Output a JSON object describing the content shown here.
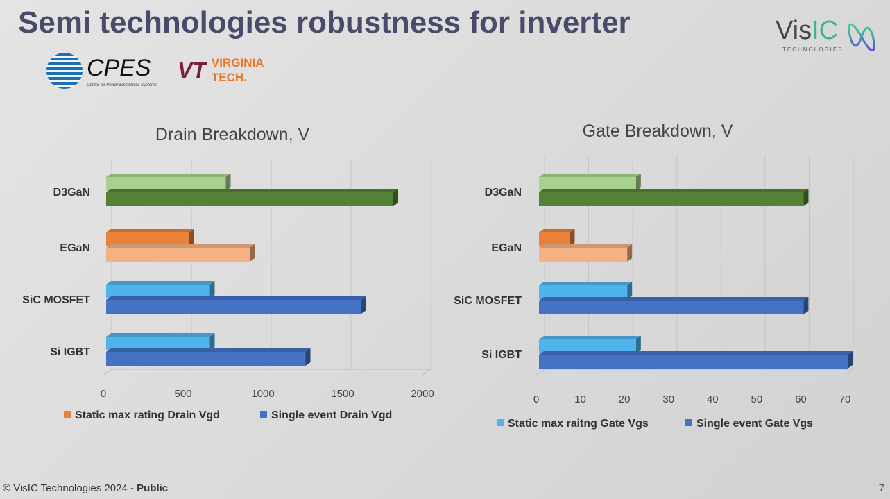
{
  "title": "Semi technologies robustness for inverter",
  "logos": {
    "cpes": "CPES",
    "cpes_sub": "Center for Power Electronics Systems",
    "vt_mark": "VT",
    "vt_name": "VIRGINIA TECH.",
    "visic_a": "Vis",
    "visic_b": "IC",
    "visic_sub": "TECHNOLOGIES"
  },
  "footer": {
    "copyright": "© VisIC Technologies 2024 - ",
    "public": "Public",
    "page": "7"
  },
  "chart_data": [
    {
      "type": "bar",
      "title": "Drain Breakdown, V",
      "categories": [
        "D3GaN",
        "EGaN",
        "SiC MOSFET",
        "Si IGBT"
      ],
      "xlim": [
        0,
        2000
      ],
      "ticks": [
        "0",
        "500",
        "1000",
        "1500",
        "2000"
      ],
      "tick_values": [
        0,
        500,
        1000,
        1500,
        2000
      ],
      "series": [
        {
          "name": "Static max rating Drain Vgd",
          "values": [
            750,
            520,
            650,
            650
          ],
          "colors": [
            "#a9d18e",
            "#e8823a",
            "#4fb3ec",
            "#4fb3ec"
          ],
          "legend_color": "#e8823a"
        },
        {
          "name": "Single event Drain Vgd",
          "values": [
            1800,
            900,
            1600,
            1250
          ],
          "colors": [
            "#548235",
            "#f4b183",
            "#4472c4",
            "#4472c4"
          ],
          "legend_color": "#4472c4"
        }
      ],
      "legend": "bottom"
    },
    {
      "type": "bar",
      "title": "Gate Breakdown, V",
      "categories": [
        "D3GaN",
        "EGaN",
        "SiC MOSFET",
        "Si IGBT"
      ],
      "xlim": [
        0,
        70
      ],
      "ticks": [
        "0",
        "10",
        "20",
        "30",
        "40",
        "50",
        "60",
        "70"
      ],
      "tick_values": [
        0,
        10,
        20,
        30,
        40,
        50,
        60,
        70
      ],
      "series": [
        {
          "name": "Static max raitng Gate Vgs",
          "values": [
            22,
            7,
            20,
            22
          ],
          "colors": [
            "#a9d18e",
            "#e8823a",
            "#4fb3ec",
            "#4fb3ec"
          ],
          "legend_color": "#4fb3ec"
        },
        {
          "name": "Single event Gate Vgs",
          "values": [
            60,
            20,
            60,
            70
          ],
          "colors": [
            "#548235",
            "#f4b183",
            "#4472c4",
            "#4472c4"
          ],
          "legend_color": "#4472c4"
        }
      ],
      "legend": "bottom"
    }
  ]
}
